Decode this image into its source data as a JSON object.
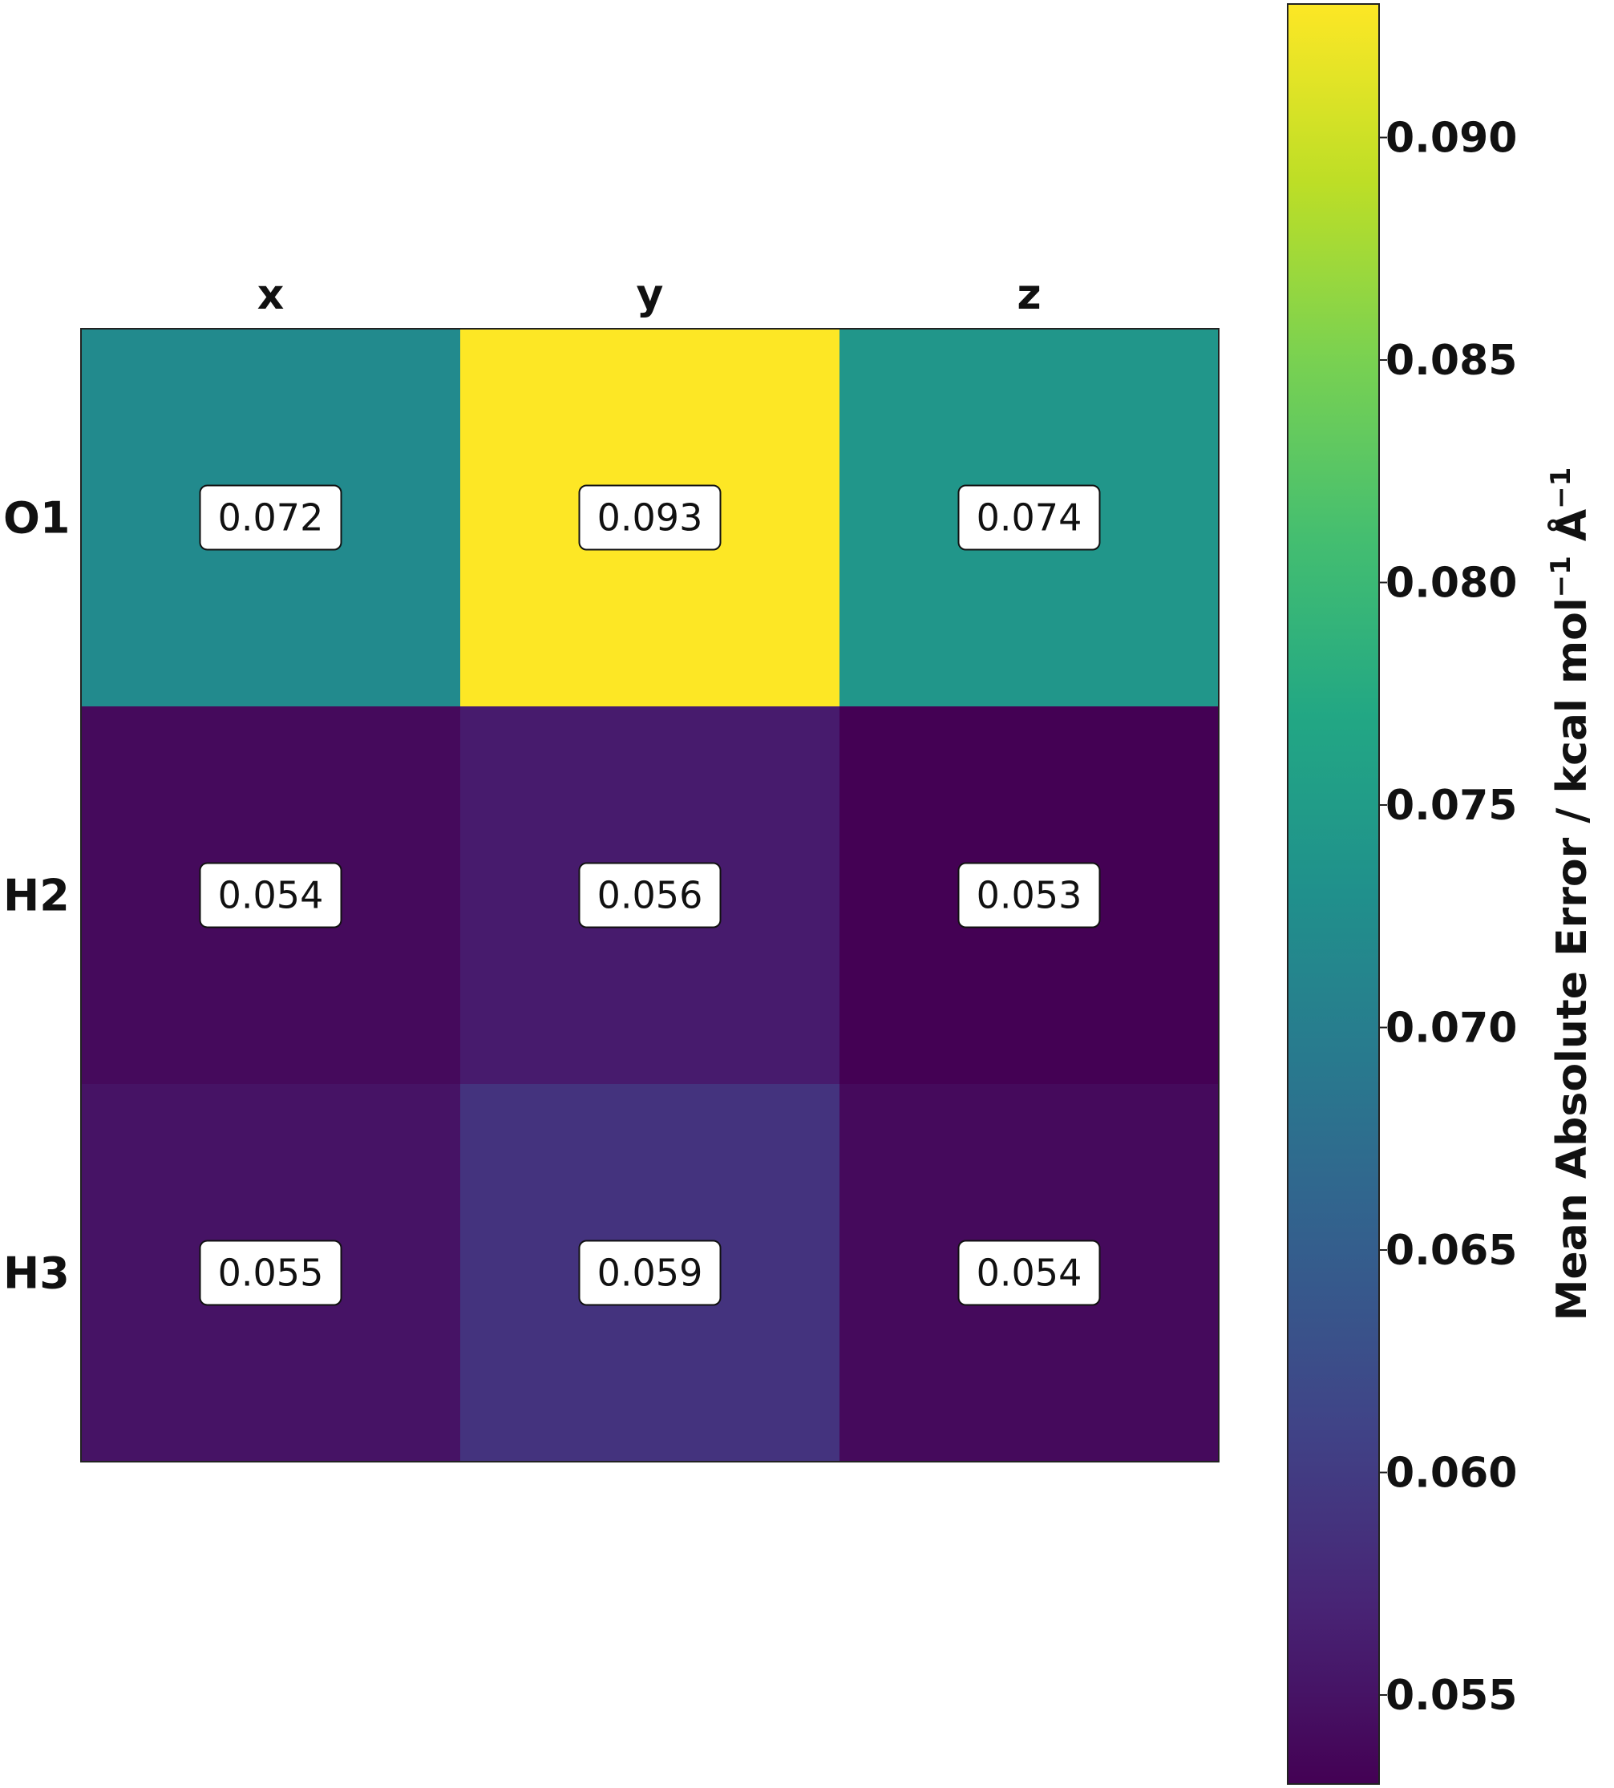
{
  "chart_data": {
    "type": "heatmap",
    "columns": [
      "x",
      "y",
      "z"
    ],
    "rows": [
      "O1",
      "H2",
      "H3"
    ],
    "values": [
      [
        0.072,
        0.093,
        0.074
      ],
      [
        0.054,
        0.056,
        0.053
      ],
      [
        0.055,
        0.059,
        0.054
      ]
    ],
    "cell_labels": [
      [
        "0.072",
        "0.093",
        "0.074"
      ],
      [
        "0.054",
        "0.056",
        "0.053"
      ],
      [
        "0.055",
        "0.059",
        "0.054"
      ]
    ],
    "colormap": "viridis",
    "vmin": 0.053,
    "vmax": 0.093,
    "colorbar": {
      "ticks": [
        0.055,
        0.06,
        0.065,
        0.07,
        0.075,
        0.08,
        0.085,
        0.09
      ],
      "tick_labels": [
        "0.055",
        "0.060",
        "0.065",
        "0.070",
        "0.075",
        "0.080",
        "0.085",
        "0.090"
      ],
      "label": "Mean Absolute Error / kcal mol",
      "label_exp": "−1",
      "label_unit": " Å",
      "position": "right"
    }
  }
}
